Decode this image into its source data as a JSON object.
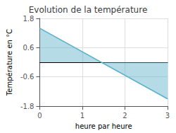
{
  "chart_data": {
    "type": "area",
    "title": "Evolution de la température",
    "x_label": "heure par heure",
    "y_label": "Température en °C",
    "x": [
      0,
      3
    ],
    "values": [
      1.4,
      -1.5
    ],
    "color": "#5aafca",
    "xlim": [
      0,
      3
    ],
    "ylim": [
      -1.8,
      1.8
    ],
    "xticks": [
      0,
      1,
      2,
      3
    ],
    "yticks": [
      -1.8,
      -0.6,
      0.6,
      1.8
    ],
    "grid": true
  }
}
